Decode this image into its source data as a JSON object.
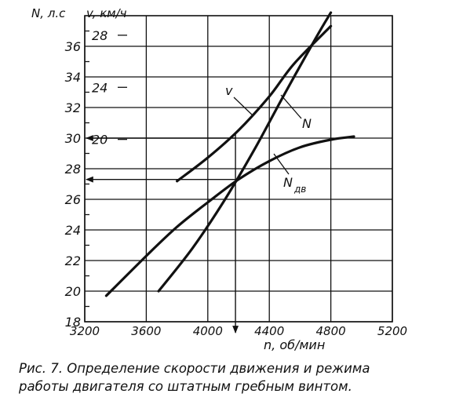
{
  "chart_data": {
    "type": "line",
    "xlabel": "n, об/мин",
    "ylabel_left": "N, л.с",
    "ylabel_right": "v, км/ч",
    "xlim": [
      3200,
      5200
    ],
    "ylim": [
      18,
      38
    ],
    "vlim": [
      6,
      29.5
    ],
    "x_ticks": [
      "3200",
      "3600",
      "4000",
      "4400",
      "4800",
      "5200"
    ],
    "y_ticks": [
      "18",
      "20",
      "22",
      "24",
      "26",
      "28",
      "30",
      "32",
      "34",
      "36"
    ],
    "v_ticks": [
      "20",
      "24",
      "28"
    ],
    "grid": true,
    "series": [
      {
        "name": "v",
        "axis": "v",
        "x": [
          3800,
          4000,
          4200,
          4400,
          4560,
          4800
        ],
        "values": [
          16.8,
          18.6,
          20.7,
          23.3,
          25.8,
          28.7
        ]
      },
      {
        "name": "N",
        "axis": "N",
        "x": [
          3680,
          3900,
          4100,
          4300,
          4500,
          4700,
          4800
        ],
        "values": [
          20.0,
          22.8,
          25.8,
          29.2,
          32.9,
          36.5,
          38.2
        ]
      },
      {
        "name": "Nдв",
        "axis": "N",
        "x": [
          3340,
          3600,
          3800,
          4000,
          4200,
          4400,
          4600,
          4800,
          4950
        ],
        "values": [
          19.7,
          22.3,
          24.2,
          25.8,
          27.3,
          28.5,
          29.4,
          29.9,
          30.1
        ]
      }
    ],
    "annotations": {
      "curve_labels": [
        "v",
        "N",
        "N",
        "дв"
      ],
      "operating_rpm": 4180,
      "speed_arrow_value": 30,
      "power_arrow_value": 27.3
    }
  },
  "caption": {
    "line1": "Рис. 7. Определение скорости движения и режима",
    "line2": "работы двигателя со штатным гребным винтом."
  }
}
